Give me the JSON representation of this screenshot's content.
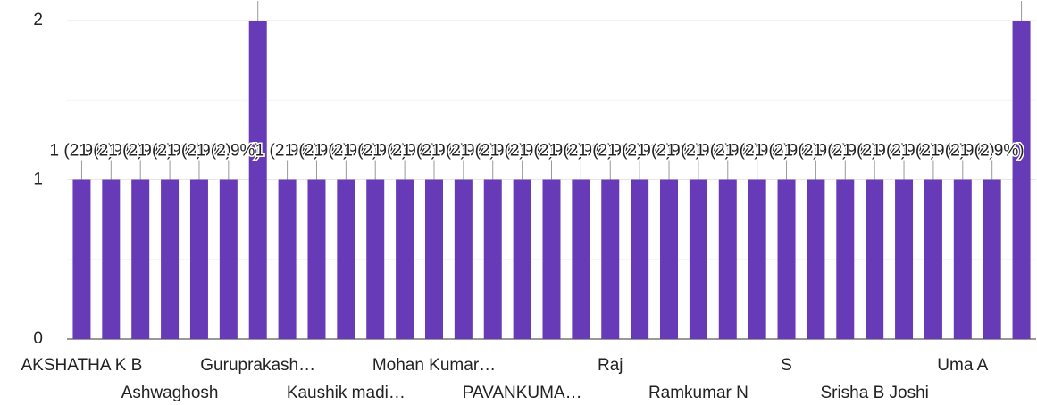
{
  "chart_data": {
    "type": "bar",
    "categories": [
      "AKSHATHA K B",
      null,
      null,
      "Ashwaghosh",
      null,
      null,
      "Guruprakash…",
      null,
      null,
      "Kaushik madi…",
      null,
      null,
      "Mohan Kumar…",
      null,
      null,
      "PAVANKUMA…",
      null,
      null,
      "Raj",
      null,
      null,
      "Ramkumar N",
      null,
      null,
      "S",
      null,
      null,
      "Srisha B Joshi",
      null,
      null,
      "Uma A",
      null,
      null
    ],
    "values": [
      1,
      1,
      1,
      1,
      1,
      1,
      2,
      1,
      1,
      1,
      1,
      1,
      1,
      1,
      1,
      1,
      1,
      1,
      1,
      1,
      1,
      1,
      1,
      1,
      1,
      1,
      1,
      1,
      1,
      1,
      1,
      1,
      2
    ],
    "value_labels": [
      "1 (2.9%)",
      "1 (2.9%)",
      "1 (2.9%)",
      "1 (2.9%)",
      "1 (2.9%)",
      "1 (2.9%)",
      "2 (5.7%)",
      "1 (2.9%)",
      "1 (2.9%)",
      "1 (2.9%)",
      "1 (2.9%)",
      "1 (2.9%)",
      "1 (2.9%)",
      "1 (2.9%)",
      "1 (2.9%)",
      "1 (2.9%)",
      "1 (2.9%)",
      "1 (2.9%)",
      "1 (2.9%)",
      "1 (2.9%)",
      "1 (2.9%)",
      "1 (2.9%)",
      "1 (2.9%)",
      "1 (2.9%)",
      "1 (2.9%)",
      "1 (2.9%)",
      "1 (2.9%)",
      "1 (2.9%)",
      "1 (2.9%)",
      "1 (2.9%)",
      "1 (2.9%)",
      "1 (2.9%)",
      "2 (5.7%)"
    ],
    "color": "#673ab7",
    "ylim": [
      0,
      2
    ],
    "yticks": [
      0,
      1,
      2
    ],
    "minor_yticks": [
      0.5,
      1.5
    ],
    "grid": true
  }
}
